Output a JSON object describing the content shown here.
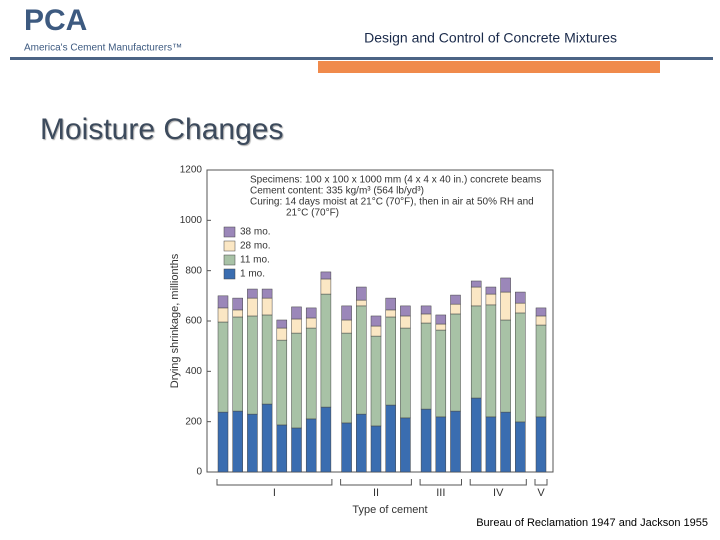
{
  "header": {
    "logo": "PCA",
    "tagline": "America's Cement Manufacturers™",
    "title": "Design and Control of Concrete Mixtures"
  },
  "slide_title": "Moisture Changes",
  "source": "Bureau of Reclamation 1947 and Jackson 1955",
  "chart_data": {
    "type": "stacked_bar",
    "annotation": [
      "Specimens: 100 x 100 x 1000 mm (4 x 4 x 40 in.) concrete beams",
      "Cement content: 335 kg/m³ (564 lb/yd³)",
      "Curing: 14 days moist at 21°C (70°F), then in air at 50% RH and",
      "21°C (70°F)"
    ],
    "y_label": "Drying shrinkage, millionths",
    "x_label": "Type of cement",
    "categories": [
      null,
      null,
      null,
      null,
      null,
      null,
      null,
      null,
      null,
      null,
      null,
      null,
      null,
      null,
      null,
      null,
      null,
      null,
      null,
      null,
      null
    ],
    "groups": [
      {
        "label": "I",
        "count": 8
      },
      {
        "label": "II",
        "count": 5
      },
      {
        "label": "III",
        "count": 3
      },
      {
        "label": "IV",
        "count": 4
      },
      {
        "label": "V",
        "count": 1
      }
    ],
    "series": [
      {
        "name": "1 mo.",
        "color": "#3a6db0",
        "values": [
          238,
          242,
          230,
          270,
          187,
          175,
          211,
          258,
          195,
          230,
          183,
          266,
          215,
          250,
          219,
          242,
          294,
          219,
          238,
          199,
          219
        ]
      },
      {
        "name": "11 mo.",
        "color": "#a8c2a6",
        "values": [
          358,
          374,
          390,
          354,
          337,
          377,
          361,
          449,
          357,
          430,
          357,
          350,
          357,
          342,
          345,
          386,
          366,
          445,
          366,
          433,
          365
        ]
      },
      {
        "name": "28 mo.",
        "color": "#fbe7c4",
        "values": [
          56,
          28,
          71,
          67,
          48,
          56,
          40,
          60,
          52,
          23,
          40,
          28,
          48,
          36,
          24,
          39,
          75,
          43,
          111,
          39,
          36
        ]
      },
      {
        "name": "38 mo.",
        "color": "#9b87b9",
        "values": [
          48,
          47,
          36,
          36,
          32,
          48,
          40,
          28,
          56,
          52,
          40,
          47,
          40,
          32,
          36,
          36,
          24,
          28,
          56,
          44,
          32
        ]
      }
    ],
    "ylim": [
      0,
      1200
    ],
    "yticks": [
      0,
      200,
      400,
      600,
      800,
      1000,
      1200
    ],
    "grid": false,
    "legend": "top-left"
  }
}
